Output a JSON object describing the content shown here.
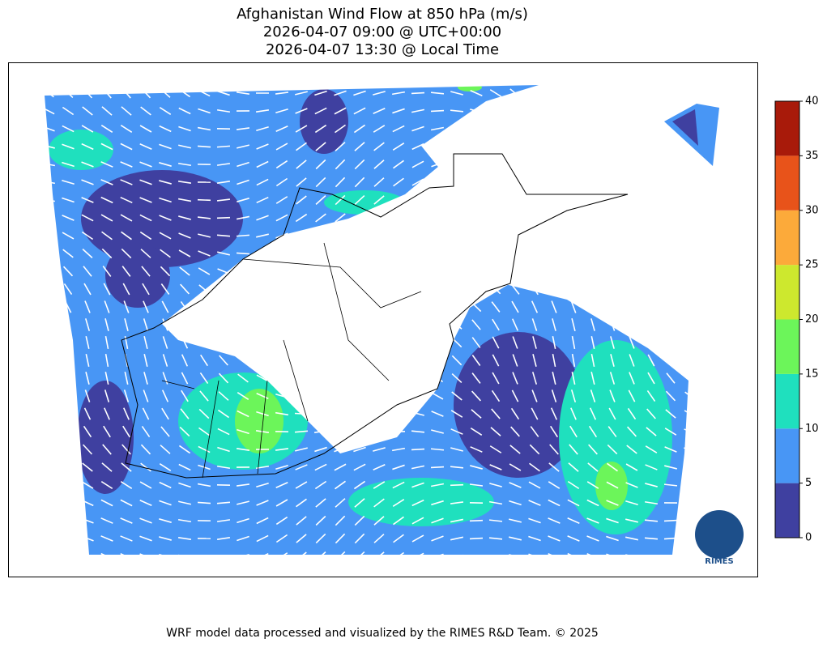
{
  "title": [
    "Afghanistan Wind Flow at 850 hPa (m/s)",
    "2026-04-07 09:00 @ UTC+00:00",
    "2026-04-07 13:30 @ Local Time"
  ],
  "colorbar": {
    "ticks": [
      0,
      5,
      10,
      15,
      20,
      25,
      30,
      35,
      40
    ],
    "colors": [
      "#3f40a0",
      "#4896f5",
      "#1fe0be",
      "#6cf55a",
      "#cde82e",
      "#fcaa3a",
      "#e8531a",
      "#a81a0a"
    ]
  },
  "footer": "WRF model data processed and visualized by the RIMES R&D Team. © 2025",
  "logo": "RIMES"
}
